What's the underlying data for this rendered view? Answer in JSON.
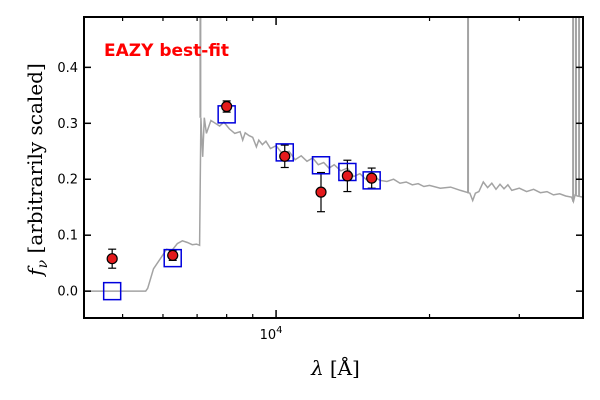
{
  "chart_data": {
    "type": "scatter",
    "title": "",
    "annotation": "EAZY best-fit",
    "xlabel": "λ [Å]",
    "ylabel": "f_ν [arbitrarily scaled]",
    "ylabel_parts": {
      "symbol": "f",
      "subscript": "ν",
      "rest": " [arbitrarily scaled]"
    },
    "xlabel_parts": {
      "symbol": "λ",
      "unit": "[Å]"
    },
    "xscale": "log",
    "xlim": [
      4200,
      40000
    ],
    "ylim": [
      -0.048,
      0.49
    ],
    "grid": false,
    "yticks": [
      {
        "value": 0.0,
        "label": "0.0"
      },
      {
        "value": 0.1,
        "label": "0.1"
      },
      {
        "value": 0.2,
        "label": "0.2"
      },
      {
        "value": 0.3,
        "label": "0.3"
      },
      {
        "value": 0.4,
        "label": "0.4"
      }
    ],
    "xticks_major": [
      {
        "value": 10000,
        "base": "10",
        "exp": "4"
      }
    ],
    "xticks_minor": [
      5000,
      6000,
      7000,
      8000,
      9000,
      20000,
      30000,
      40000
    ],
    "colors": {
      "observed_fill": "#e41a1c",
      "observed_edge": "#000000",
      "model_box": "#0000dd",
      "template": "#a3a3a3",
      "annotation": "#ff0000"
    },
    "observed_points": [
      {
        "x": 4770,
        "y": 0.058,
        "yerr": 0.017
      },
      {
        "x": 6270,
        "y": 0.064,
        "yerr": 0.009
      },
      {
        "x": 8000,
        "y": 0.33,
        "yerr": 0.01
      },
      {
        "x": 10400,
        "y": 0.241,
        "yerr": 0.02
      },
      {
        "x": 12250,
        "y": 0.177,
        "yerr": 0.035
      },
      {
        "x": 13800,
        "y": 0.206,
        "yerr": 0.028
      },
      {
        "x": 15400,
        "y": 0.202,
        "yerr": 0.018
      }
    ],
    "model_fluxes": [
      {
        "x": 4770,
        "y": 0.0
      },
      {
        "x": 6270,
        "y": 0.059
      },
      {
        "x": 8000,
        "y": 0.316
      },
      {
        "x": 10400,
        "y": 0.248
      },
      {
        "x": 12250,
        "y": 0.225
      },
      {
        "x": 13800,
        "y": 0.213
      },
      {
        "x": 15400,
        "y": 0.198
      }
    ],
    "template_spectrum": [
      [
        4200,
        0.0
      ],
      [
        5550,
        0.0
      ],
      [
        5600,
        0.005
      ],
      [
        5750,
        0.04
      ],
      [
        5950,
        0.06
      ],
      [
        6100,
        0.075
      ],
      [
        6250,
        0.073
      ],
      [
        6400,
        0.085
      ],
      [
        6550,
        0.09
      ],
      [
        6700,
        0.087
      ],
      [
        6850,
        0.083
      ],
      [
        6980,
        0.084
      ],
      [
        7080,
        0.082
      ],
      [
        7120,
        0.31
      ],
      [
        7180,
        0.24
      ],
      [
        7230,
        0.31
      ],
      [
        7300,
        0.282
      ],
      [
        7450,
        0.305
      ],
      [
        7600,
        0.3
      ],
      [
        7750,
        0.295
      ],
      [
        7900,
        0.302
      ],
      [
        8100,
        0.29
      ],
      [
        8300,
        0.282
      ],
      [
        8500,
        0.285
      ],
      [
        8600,
        0.27
      ],
      [
        8700,
        0.283
      ],
      [
        8850,
        0.278
      ],
      [
        9000,
        0.275
      ],
      [
        9150,
        0.258
      ],
      [
        9250,
        0.27
      ],
      [
        9400,
        0.262
      ],
      [
        9550,
        0.268
      ],
      [
        9750,
        0.255
      ],
      [
        10000,
        0.26
      ],
      [
        10300,
        0.245
      ],
      [
        10600,
        0.25
      ],
      [
        10900,
        0.235
      ],
      [
        11200,
        0.242
      ],
      [
        11500,
        0.232
      ],
      [
        11800,
        0.238
      ],
      [
        12100,
        0.226
      ],
      [
        12400,
        0.23
      ],
      [
        12700,
        0.22
      ],
      [
        13000,
        0.226
      ],
      [
        13400,
        0.215
      ],
      [
        13800,
        0.22
      ],
      [
        14200,
        0.205
      ],
      [
        14600,
        0.21
      ],
      [
        15000,
        0.2
      ],
      [
        15500,
        0.205
      ],
      [
        16000,
        0.198
      ],
      [
        16500,
        0.196
      ],
      [
        17000,
        0.2
      ],
      [
        17500,
        0.193
      ],
      [
        18000,
        0.195
      ],
      [
        18500,
        0.19
      ],
      [
        19000,
        0.192
      ],
      [
        19500,
        0.187
      ],
      [
        20000,
        0.189
      ],
      [
        21000,
        0.184
      ],
      [
        22000,
        0.186
      ],
      [
        23000,
        0.18
      ],
      [
        24000,
        0.175
      ],
      [
        24300,
        0.162
      ],
      [
        24600,
        0.175
      ],
      [
        25000,
        0.178
      ],
      [
        25500,
        0.195
      ],
      [
        26000,
        0.185
      ],
      [
        26500,
        0.193
      ],
      [
        27000,
        0.182
      ],
      [
        27500,
        0.191
      ],
      [
        28000,
        0.183
      ],
      [
        28500,
        0.19
      ],
      [
        29000,
        0.18
      ],
      [
        30000,
        0.184
      ],
      [
        31000,
        0.178
      ],
      [
        32000,
        0.182
      ],
      [
        33000,
        0.176
      ],
      [
        34000,
        0.178
      ],
      [
        35000,
        0.172
      ],
      [
        36000,
        0.174
      ],
      [
        37000,
        0.17
      ],
      [
        38000,
        0.168
      ],
      [
        38300,
        0.16
      ],
      [
        38600,
        0.172
      ],
      [
        39000,
        0.17
      ],
      [
        40000,
        0.168
      ]
    ],
    "template_emission_lines": [
      {
        "x": 7105,
        "y_top": 0.49
      },
      {
        "x": 23800,
        "y_top": 0.49
      },
      {
        "x": 38250,
        "y_top": 0.49
      },
      {
        "x": 38750,
        "y_top": 0.49
      },
      {
        "x": 39300,
        "y_top": 0.49
      }
    ]
  }
}
